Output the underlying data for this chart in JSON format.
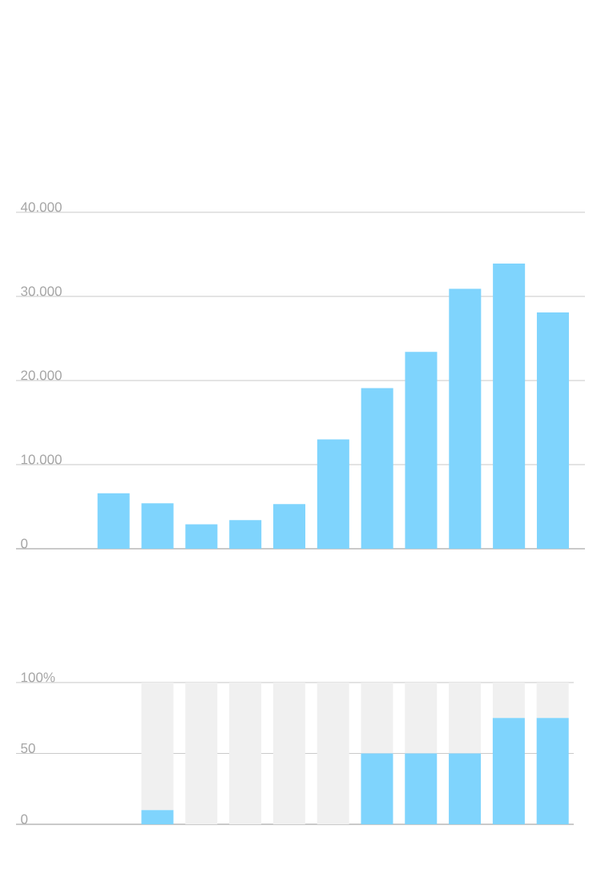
{
  "chart_data": [
    {
      "type": "bar",
      "categories": [
        null,
        null,
        null,
        null,
        null,
        null,
        null,
        null,
        null,
        null,
        null
      ],
      "values": [
        6600,
        5400,
        2900,
        3400,
        5300,
        13000,
        19100,
        23400,
        30900,
        33900,
        28100
      ],
      "color": "#7fd4fd",
      "ylim": [
        0,
        40000
      ],
      "yticks": [
        {
          "value": 0,
          "label": "0"
        },
        {
          "value": 10000,
          "label": "10.000"
        },
        {
          "value": 20000,
          "label": "20.000"
        },
        {
          "value": 30000,
          "label": "30.000"
        },
        {
          "value": 40000,
          "label": "40.000"
        }
      ],
      "grid": "y",
      "tick_labels": "y"
    },
    {
      "type": "bar",
      "categories": [
        null,
        null,
        null,
        null,
        null,
        null,
        null,
        null,
        null,
        null,
        null
      ],
      "stacked": true,
      "series": [
        {
          "color": "#7fd4fd",
          "values": [
            null,
            10,
            0,
            0,
            0,
            0,
            50,
            50,
            50,
            75,
            75
          ]
        },
        {
          "color": "#f0f0f0",
          "values": [
            null,
            90,
            100,
            100,
            100,
            100,
            50,
            50,
            50,
            25,
            25
          ]
        }
      ],
      "ylim": [
        0,
        100
      ],
      "yticks": [
        0,
        50,
        {
          "value": 100,
          "label": "100%"
        }
      ],
      "grid": "y",
      "tick_labels": "y"
    }
  ]
}
